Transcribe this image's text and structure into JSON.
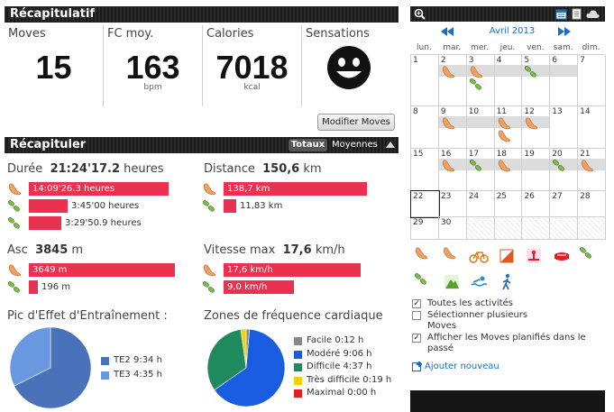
{
  "recap": {
    "title": "Récapitulatif",
    "stats": [
      {
        "label": "Moves",
        "value": "15",
        "unit": ""
      },
      {
        "label": "FC moy.",
        "value": "163",
        "unit": "bpm"
      },
      {
        "label": "Calories",
        "value": "7018",
        "unit": "kcal"
      },
      {
        "label": "Sensations",
        "value": "",
        "unit": ""
      }
    ],
    "edit_button": "Modifier Moves"
  },
  "summary": {
    "title": "Récapituler",
    "tab_totals": "Totaux",
    "tab_averages": "Moyennes",
    "duration": {
      "label": "Durée",
      "value": "21:24'17.2",
      "unit": "heures",
      "rows": [
        {
          "text": "14:09'26.3 heures",
          "frac": 0.94,
          "icon": "running-shoe-icon"
        },
        {
          "text": "3:45'00 heures",
          "frac": 0.26,
          "icon": "trekking-icon"
        },
        {
          "text": "3:29'50.9 heures",
          "frac": 0.22,
          "icon": "trekking-icon"
        }
      ]
    },
    "distance": {
      "label": "Distance",
      "value": "150,6",
      "unit": "km",
      "rows": [
        {
          "text": "138,7 km",
          "frac": 0.92,
          "icon": "running-shoe-icon"
        },
        {
          "text": "11,83 km",
          "frac": 0.08,
          "icon": "trekking-icon"
        }
      ]
    },
    "ascent": {
      "label": "Asc",
      "value": "3845",
      "unit": "m",
      "rows": [
        {
          "text": "3649 m",
          "frac": 0.95,
          "icon": "running-shoe-icon"
        },
        {
          "text": "196 m",
          "frac": 0.05,
          "icon": "trekking-icon"
        }
      ]
    },
    "speed": {
      "label": "Vitesse max",
      "value": "17,6",
      "unit": "km/h",
      "rows": [
        {
          "text": "17,6 km/h",
          "frac": 1.0,
          "icon": "running-shoe-icon"
        },
        {
          "text": "9,0 km/h",
          "frac": 0.51,
          "icon": "trekking-icon"
        }
      ]
    }
  },
  "te_chart": {
    "title": "Pic d'Effet d'Entraînement :",
    "chart_data": {
      "type": "pie",
      "slices": [
        {
          "label": "TE2 9:34 h",
          "value": 574,
          "color": "#4a72b8"
        },
        {
          "label": "TE3 4:35 h",
          "value": 275,
          "color": "#6a98e0"
        }
      ]
    }
  },
  "hr_chart": {
    "title": "Zones de fréquence cardiaque",
    "chart_data": {
      "type": "pie",
      "slices": [
        {
          "label": "Facile 0:12 h",
          "value": 12,
          "color": "#888888"
        },
        {
          "label": "Modéré 9:06 h",
          "value": 546,
          "color": "#1a5ce0"
        },
        {
          "label": "Difficile 4:37 h",
          "value": 277,
          "color": "#1e8a5e"
        },
        {
          "label": "Très difficile 0:19 h",
          "value": 19,
          "color": "#f2d00a"
        },
        {
          "label": "Maximal 0:00 h",
          "value": 0,
          "color": "#e02020"
        }
      ]
    }
  },
  "calendar": {
    "month": "Avril 2013",
    "weekdays": [
      "lun.",
      "mar.",
      "mer.",
      "jeu.",
      "ven.",
      "sam.",
      "dim."
    ],
    "days": [
      "1",
      "2",
      "3",
      "4",
      "5",
      "6",
      "7",
      "8",
      "9",
      "10",
      "11",
      "12",
      "13",
      "14",
      "15",
      "16",
      "17",
      "18",
      "19",
      "20",
      "21",
      "22",
      "23",
      "24",
      "25",
      "26",
      "27",
      "28",
      "29",
      "30"
    ]
  },
  "options": {
    "all_activities": "Toutes les activités",
    "select_multi": "Sélectionner plusieurs Moves",
    "show_planned": "Afficher les Moves planifiés dans le passé",
    "add_new": "Ajouter nouveau"
  },
  "colors": {
    "bar": "#e8324f",
    "header": "#1e1e1e",
    "accent": "#1a6fc4"
  }
}
